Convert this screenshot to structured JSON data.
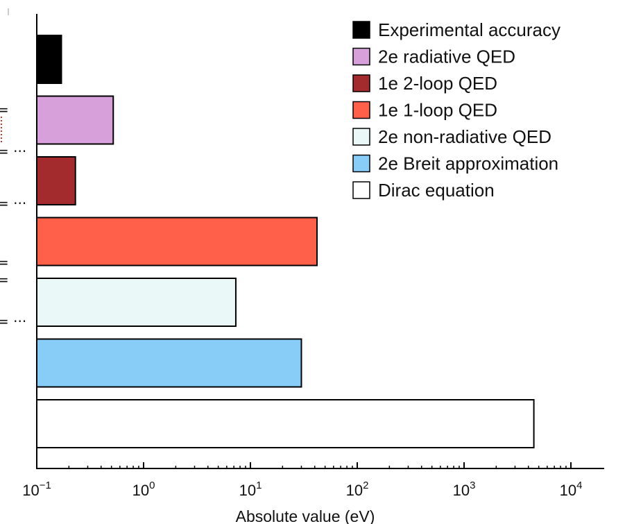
{
  "chart_data": {
    "type": "bar",
    "orientation": "horizontal",
    "x_scale": "log",
    "xlim": [
      0.1,
      10000
    ],
    "xlabel": "Absolute value (eV)",
    "x_ticks": [
      {
        "value": 0.1,
        "base": "10",
        "exp": "−1"
      },
      {
        "value": 1,
        "base": "10",
        "exp": "0"
      },
      {
        "value": 10,
        "base": "10",
        "exp": "1"
      },
      {
        "value": 100,
        "base": "10",
        "exp": "2"
      },
      {
        "value": 1000,
        "base": "10",
        "exp": "3"
      },
      {
        "value": 10000,
        "base": "10",
        "exp": "4"
      }
    ],
    "bars": [
      {
        "name": "Experimental accuracy",
        "value": 0.17,
        "color": "#000000"
      },
      {
        "name": "2e radiative QED",
        "value": 0.52,
        "color": "#d8a0da"
      },
      {
        "name": "1e 2-loop QED",
        "value": 0.23,
        "color": "#a32b2e"
      },
      {
        "name": "1e 1-loop QED",
        "value": 42,
        "color": "#ff604a"
      },
      {
        "name": "2e non-radiative QED",
        "value": 7.3,
        "color": "#eaf8f8"
      },
      {
        "name": "2e Breit approximation",
        "value": 30,
        "color": "#87cdf8"
      },
      {
        "name": "Dirac equation",
        "value": 4500,
        "color": "#ffffff"
      }
    ],
    "legend": {
      "placement": "top-right",
      "entries": [
        {
          "label": "Experimental accuracy",
          "color": "#000000"
        },
        {
          "label": "2e radiative QED",
          "color": "#d8a0da"
        },
        {
          "label": "1e 2-loop QED",
          "color": "#a32b2e"
        },
        {
          "label": "1e 1-loop QED",
          "color": "#ff604a"
        },
        {
          "label": "2e non-radiative QED",
          "color": "#eaf8f8"
        },
        {
          "label": "2e Breit approximation",
          "color": "#87cdf8"
        },
        {
          "label": "Dirac equation",
          "color": "#ffffff"
        }
      ]
    },
    "left_edge_fragments": [
      "=",
      "= ···",
      "= ···",
      "=",
      "=",
      "= ···"
    ]
  }
}
